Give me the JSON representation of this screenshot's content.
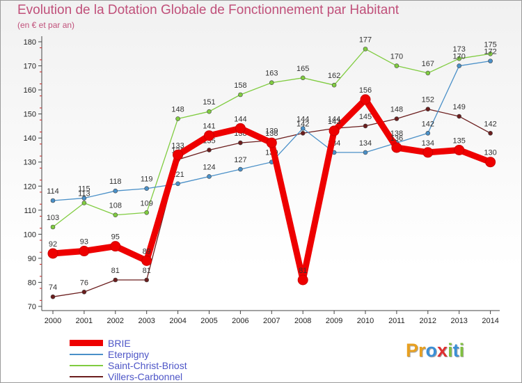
{
  "chart_data": {
    "type": "line",
    "title": "Evolution de la Dotation Globale de Fonctionnement par Habitant",
    "subtitle": "(en € et par an)",
    "xlabel": "",
    "ylabel": "",
    "ylim": [
      70,
      180
    ],
    "yticks": [
      70,
      80,
      90,
      100,
      110,
      120,
      130,
      140,
      150,
      160,
      170,
      180
    ],
    "categories": [
      "2000",
      "2001",
      "2002",
      "2003",
      "2004",
      "2005",
      "2006",
      "2007",
      "2008",
      "2009",
      "2010",
      "2011",
      "2012",
      "2013",
      "2014"
    ],
    "grid": false,
    "legend_position": "bottom-left",
    "series": [
      {
        "name": "Villers-Carbonnel",
        "color": "#6b1d1d",
        "values": [
          74,
          76,
          81,
          81,
          131,
          135,
          138,
          139,
          142,
          144,
          145,
          148,
          152,
          149,
          142
        ],
        "labels": [
          "74",
          "76",
          "81",
          "81",
          "131",
          "135",
          "138",
          "139",
          "142",
          "144",
          "145",
          "148",
          "152",
          "149",
          "142"
        ]
      },
      {
        "name": "Saint-Christ-Briost",
        "color": "#80cc40",
        "values": [
          103,
          113,
          108,
          109,
          148,
          151,
          158,
          163,
          165,
          162,
          177,
          170,
          167,
          173,
          175
        ],
        "labels": [
          "103",
          "113",
          "108",
          "109",
          "148",
          "151",
          "158",
          "163",
          "165",
          "162",
          "177",
          "170",
          "167",
          "173",
          "175"
        ]
      },
      {
        "name": "Eterpigny",
        "color": "#4a90c8",
        "values": [
          114,
          115,
          118,
          119,
          121,
          124,
          127,
          130,
          144,
          134,
          134,
          138,
          142,
          170,
          172
        ],
        "labels": [
          "114",
          "115",
          "118",
          "119",
          "121",
          "124",
          "127",
          "130",
          "144",
          "134",
          "134",
          "138",
          "142",
          "170",
          "172"
        ]
      },
      {
        "name": "BRIE",
        "color": "#ee0000",
        "values": [
          92,
          93,
          95,
          89,
          133,
          141,
          144,
          138,
          81,
          143,
          156,
          136,
          134,
          135,
          130
        ],
        "labels": [
          "92",
          "93",
          "95",
          "89",
          "133",
          "141",
          "144",
          "138",
          "81",
          "143",
          "156",
          "136",
          "134",
          "135",
          "130"
        ]
      }
    ],
    "legend_order": [
      "BRIE",
      "Eterpigny",
      "Saint-Christ-Briost",
      "Villers-Carbonnel"
    ]
  },
  "logo": {
    "letters": [
      "P",
      "r",
      "o",
      "x",
      "i",
      "t",
      "i"
    ],
    "colors": [
      "#e8a020",
      "#e8a020",
      "#3b8fd6",
      "#e03030",
      "#80c040",
      "#3b8fd6",
      "#80c040"
    ]
  }
}
